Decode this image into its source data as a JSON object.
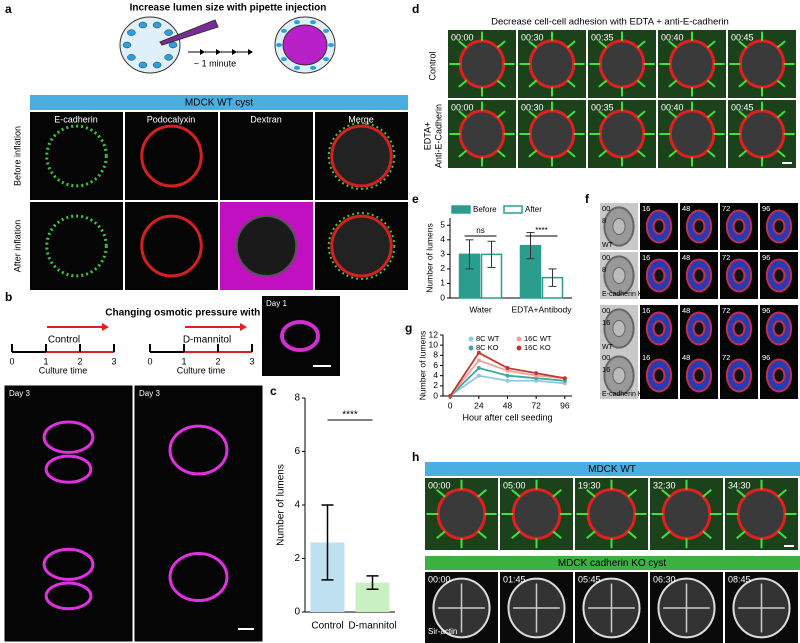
{
  "panel_a": {
    "label": "a",
    "title": "Increase lumen size with pipette injection",
    "duration": "~ 1 minute",
    "banner": "MDCK WT cyst",
    "columns": [
      "E-cadherin",
      "Podocalyxin",
      "Dextran",
      "Merge"
    ],
    "rows": [
      "Before inflation",
      "After inflation"
    ]
  },
  "panel_b": {
    "label": "b",
    "title": "Changing osmotic pressure with Osmotic shock",
    "conditions": [
      "Control",
      "D-mannitol"
    ],
    "timeline_ticks": [
      "0",
      "1",
      "2",
      "3"
    ],
    "timeline_label": "Culture time",
    "images": [
      "Day 1",
      "Day 3",
      "Day 3"
    ]
  },
  "panel_d": {
    "label": "d",
    "title": "Decrease cell-cell adhesion with EDTA + anti-E-cadherin",
    "rows": [
      [
        "Control"
      ],
      [
        "EDTA+",
        "Anti-E-Cadherin"
      ]
    ],
    "times": [
      "00:00",
      "00:30",
      "00:35",
      "00:40",
      "00:45"
    ]
  },
  "panel_f": {
    "label": "f",
    "times": [
      "00",
      "16",
      "48",
      "72",
      "96"
    ],
    "rows": [
      {
        "cells": "8",
        "genotype": "WT"
      },
      {
        "cells": "8",
        "genotype": "E-cadherin KO"
      },
      {
        "cells": "16",
        "genotype": "WT"
      },
      {
        "cells": "16",
        "genotype": "E-cadherin KO"
      }
    ]
  },
  "panel_h": {
    "label": "h",
    "banners": [
      "MDCK WT",
      "MDCK cadherin KO cyst"
    ],
    "times": [
      [
        "00:00",
        "05:00",
        "19:30",
        "32:30",
        "34:30"
      ],
      [
        "00:00",
        "01:45",
        "05:45",
        "06:30",
        "08:45"
      ]
    ],
    "stain": "Sir-actin"
  },
  "chart_data": [
    {
      "label": "c",
      "type": "bar",
      "categories": [
        "Control",
        "D-mannitol"
      ],
      "values": [
        2.6,
        1.1
      ],
      "errors": [
        1.4,
        0.25
      ],
      "colors": [
        "#bfe0ef",
        "#c8f0c0"
      ],
      "ylim": [
        0,
        8
      ],
      "yticks": [
        0,
        2,
        4,
        6,
        8
      ],
      "y_label": "Number of lumens",
      "annotation": "****"
    },
    {
      "label": "e",
      "type": "grouped_bar",
      "categories": [
        "Water",
        "EDTA+Antibody"
      ],
      "series": [
        {
          "name": "Before",
          "color": "#2a9d8f",
          "style": "filled",
          "values": [
            3.0,
            3.6
          ],
          "errors": [
            1.0,
            0.9
          ]
        },
        {
          "name": "After",
          "color": "#2a9d8f",
          "style": "outline",
          "values": [
            3.0,
            1.4
          ],
          "errors": [
            0.9,
            0.6
          ]
        }
      ],
      "ylim": [
        0,
        5.5
      ],
      "yticks": [
        0,
        1,
        2,
        3,
        4,
        5
      ],
      "y_label": "Number of lumens",
      "annotations": [
        "ns",
        "****"
      ]
    },
    {
      "label": "g",
      "type": "line",
      "x": [
        0,
        24,
        48,
        72,
        96
      ],
      "series": [
        {
          "name": "8C WT",
          "color": "#8ecae6",
          "values": [
            0,
            4,
            3,
            3,
            2.5
          ]
        },
        {
          "name": "8C KO",
          "color": "#3fa7a0",
          "values": [
            0,
            5.5,
            4,
            3.5,
            3
          ]
        },
        {
          "name": "16C WT",
          "color": "#f4a09a",
          "values": [
            0,
            7,
            5,
            4,
            3.5
          ]
        },
        {
          "name": "16C KO",
          "color": "#c0392b",
          "values": [
            0,
            8.5,
            5.5,
            4.5,
            3.5
          ]
        }
      ],
      "xlim": [
        -6,
        102
      ],
      "ylim": [
        0,
        12
      ],
      "xticks": [
        0,
        24,
        48,
        72,
        96
      ],
      "yticks": [
        0,
        2,
        4,
        6,
        8,
        10,
        12
      ],
      "x_label": "Hour after cell seeding",
      "y_label": "Number of lumens"
    }
  ]
}
